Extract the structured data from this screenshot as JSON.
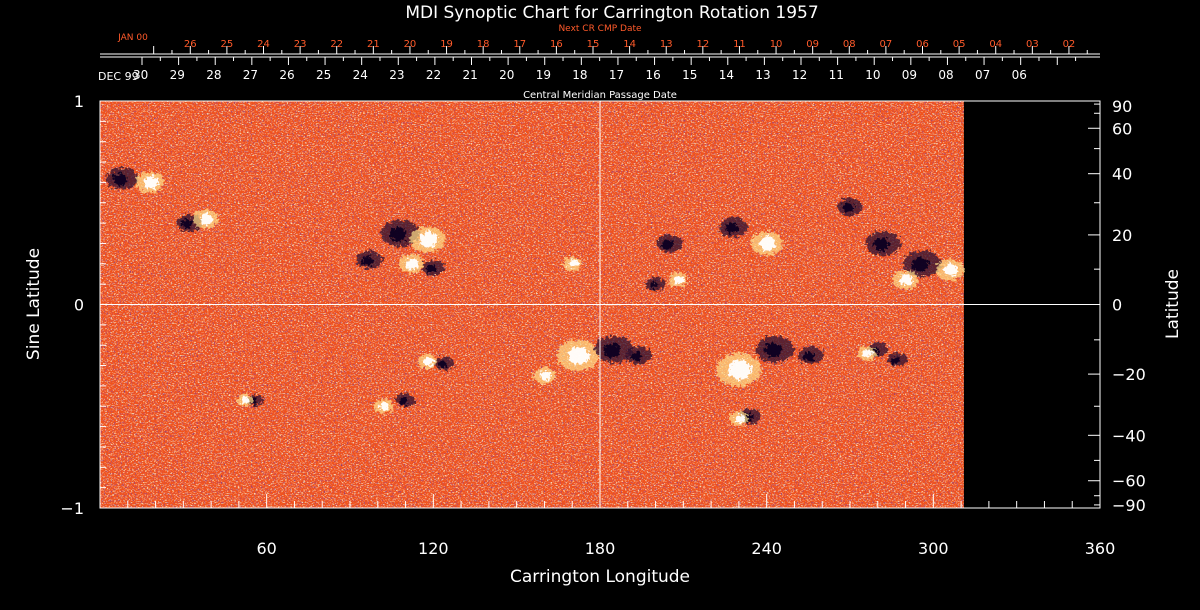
{
  "colors": {
    "background": "#000000",
    "foreground": "#ffffff",
    "next_cr_text": "#ff5a2a",
    "map_base": "#f0521a",
    "map_dark": "#2b1230",
    "map_bright": "#ffffff",
    "map_yellow": "#ffe08a"
  },
  "chart_data": {
    "type": "heatmap",
    "title": "MDI Synoptic Chart for Carrington Rotation 1957",
    "xlabel": "Carrington Longitude",
    "ylabel_left": "Sine Latitude",
    "ylabel_right": "Latitude",
    "xlim": [
      0,
      360
    ],
    "ylim": [
      -1,
      1
    ],
    "data_extent_longitude": [
      0,
      311
    ],
    "grid_lines": {
      "longitude": [
        180
      ],
      "sine_latitude": [
        0
      ]
    },
    "x_ticks": [
      "60",
      "120",
      "180",
      "240",
      "300",
      "360"
    ],
    "x_tick_values": [
      60,
      120,
      180,
      240,
      300,
      360
    ],
    "y_left_ticks": [
      "1",
      "0",
      "−1"
    ],
    "y_left_tick_values": [
      1,
      0,
      -1
    ],
    "y_right_ticks": [
      "90",
      "60",
      "40",
      "20",
      "0",
      "−20",
      "−40",
      "−60",
      "−90"
    ],
    "y_right_tick_values": [
      90,
      60,
      40,
      20,
      0,
      -20,
      -40,
      -60,
      -90
    ],
    "top_axes": {
      "next_cr": {
        "label": "Next CR CMP Date",
        "start_label": "JAN 00",
        "days": [
          "26",
          "25",
          "24",
          "23",
          "22",
          "21",
          "20",
          "19",
          "18",
          "17",
          "16",
          "15",
          "14",
          "13",
          "12",
          "11",
          "10",
          "09",
          "08",
          "07",
          "06",
          "05",
          "04",
          "03",
          "02"
        ],
        "first_day_longitude": 32.5,
        "day_spacing_longitude": 13.18
      },
      "cmp": {
        "label": "Central Meridian Passage Date",
        "start_label": "DEC 99",
        "days": [
          "30",
          "29",
          "28",
          "27",
          "26",
          "25",
          "24",
          "23",
          "22",
          "21",
          "20",
          "19",
          "18",
          "17",
          "16",
          "15",
          "14",
          "13",
          "12",
          "11",
          "10",
          "09",
          "08",
          "07",
          "06"
        ],
        "first_day_longitude": 28.3,
        "day_spacing_longitude": 13.18
      }
    },
    "active_regions": [
      {
        "lon": 8,
        "sinlat": 0.62,
        "polarity": "negative",
        "size": 1.0
      },
      {
        "lon": 18,
        "sinlat": 0.6,
        "polarity": "positive",
        "size": 0.9
      },
      {
        "lon": 32,
        "sinlat": 0.4,
        "polarity": "negative",
        "size": 0.8
      },
      {
        "lon": 38,
        "sinlat": 0.42,
        "polarity": "positive",
        "size": 0.8
      },
      {
        "lon": 108,
        "sinlat": 0.35,
        "polarity": "negative",
        "size": 1.2
      },
      {
        "lon": 118,
        "sinlat": 0.32,
        "polarity": "positive",
        "size": 1.1
      },
      {
        "lon": 112,
        "sinlat": 0.2,
        "polarity": "positive",
        "size": 0.8
      },
      {
        "lon": 120,
        "sinlat": 0.18,
        "polarity": "negative",
        "size": 0.7
      },
      {
        "lon": 97,
        "sinlat": 0.22,
        "polarity": "negative",
        "size": 0.8
      },
      {
        "lon": 172,
        "sinlat": -0.25,
        "polarity": "positive",
        "size": 1.3
      },
      {
        "lon": 185,
        "sinlat": -0.22,
        "polarity": "negative",
        "size": 1.2
      },
      {
        "lon": 194,
        "sinlat": -0.25,
        "polarity": "negative",
        "size": 0.8
      },
      {
        "lon": 160,
        "sinlat": -0.35,
        "polarity": "positive",
        "size": 0.7
      },
      {
        "lon": 124,
        "sinlat": -0.29,
        "polarity": "negative",
        "size": 0.6
      },
      {
        "lon": 118,
        "sinlat": -0.28,
        "polarity": "positive",
        "size": 0.6
      },
      {
        "lon": 110,
        "sinlat": -0.47,
        "polarity": "negative",
        "size": 0.6
      },
      {
        "lon": 102,
        "sinlat": -0.5,
        "polarity": "positive",
        "size": 0.6
      },
      {
        "lon": 56,
        "sinlat": -0.47,
        "polarity": "negative",
        "size": 0.5
      },
      {
        "lon": 52,
        "sinlat": -0.47,
        "polarity": "positive",
        "size": 0.5
      },
      {
        "lon": 230,
        "sinlat": -0.32,
        "polarity": "positive",
        "size": 1.4
      },
      {
        "lon": 243,
        "sinlat": -0.22,
        "polarity": "negative",
        "size": 1.2
      },
      {
        "lon": 256,
        "sinlat": -0.25,
        "polarity": "negative",
        "size": 0.8
      },
      {
        "lon": 234,
        "sinlat": -0.55,
        "polarity": "negative",
        "size": 0.7
      },
      {
        "lon": 230,
        "sinlat": -0.56,
        "polarity": "positive",
        "size": 0.6
      },
      {
        "lon": 280,
        "sinlat": -0.22,
        "polarity": "negative",
        "size": 0.6
      },
      {
        "lon": 287,
        "sinlat": -0.27,
        "polarity": "negative",
        "size": 0.6
      },
      {
        "lon": 276,
        "sinlat": -0.24,
        "polarity": "positive",
        "size": 0.6
      },
      {
        "lon": 240,
        "sinlat": 0.3,
        "polarity": "positive",
        "size": 1.0
      },
      {
        "lon": 228,
        "sinlat": 0.38,
        "polarity": "negative",
        "size": 0.9
      },
      {
        "lon": 205,
        "sinlat": 0.3,
        "polarity": "negative",
        "size": 0.8
      },
      {
        "lon": 200,
        "sinlat": 0.1,
        "polarity": "negative",
        "size": 0.6
      },
      {
        "lon": 208,
        "sinlat": 0.12,
        "polarity": "positive",
        "size": 0.6
      },
      {
        "lon": 282,
        "sinlat": 0.3,
        "polarity": "negative",
        "size": 1.1
      },
      {
        "lon": 296,
        "sinlat": 0.2,
        "polarity": "negative",
        "size": 1.2
      },
      {
        "lon": 306,
        "sinlat": 0.17,
        "polarity": "positive",
        "size": 0.9
      },
      {
        "lon": 290,
        "sinlat": 0.12,
        "polarity": "positive",
        "size": 0.8
      },
      {
        "lon": 270,
        "sinlat": 0.48,
        "polarity": "negative",
        "size": 0.8
      },
      {
        "lon": 170,
        "sinlat": 0.2,
        "polarity": "positive",
        "size": 0.6
      }
    ]
  }
}
